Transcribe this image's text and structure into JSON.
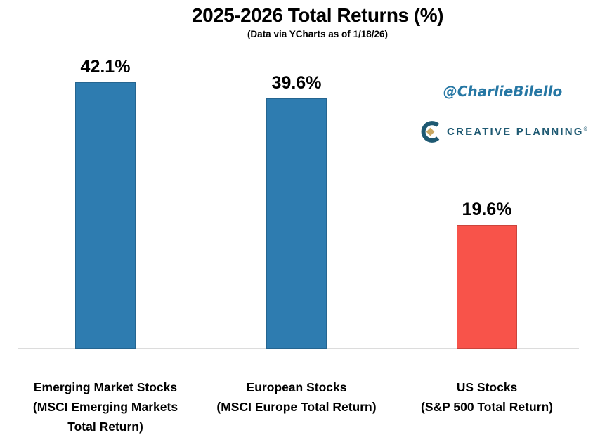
{
  "chart": {
    "title": "2025-2026 Total Returns (%)",
    "subtitle": "(Data via YCharts as of 1/18/26)"
  },
  "watermark": {
    "handle": "@CharlieBilello",
    "brand": "CREATIVE PLANNING",
    "brand_registered_mark": "®"
  },
  "colors": {
    "bar_blue": "#2E7CB0",
    "bar_red": "#F8534A",
    "axis_line": "#DCDCDC",
    "handle_text": "#2677A4",
    "brand_text": "#1E5972",
    "brand_diamond": "#C9A762",
    "label_text": "#000000"
  },
  "chart_data": {
    "type": "bar",
    "title": "2025-2026 Total Returns (%)",
    "subtitle": "(Data via YCharts as of 1/18/26)",
    "categories": [
      [
        "Emerging Market Stocks",
        "(MSCI Emerging Markets",
        "Total Return)"
      ],
      [
        "European Stocks",
        "(MSCI Europe Total Return)"
      ],
      [
        "US Stocks",
        "(S&P 500 Total Return)"
      ]
    ],
    "values": [
      42.1,
      39.6,
      19.6
    ],
    "value_labels": [
      "42.1%",
      "39.6%",
      "19.6%"
    ],
    "bar_colors": [
      "#2E7CB0",
      "#2E7CB0",
      "#F8534A"
    ],
    "ylabel": "",
    "xlabel": "",
    "ylim": [
      0,
      50
    ],
    "grid": false,
    "legend": false,
    "value_labels_position": "above-bar"
  }
}
